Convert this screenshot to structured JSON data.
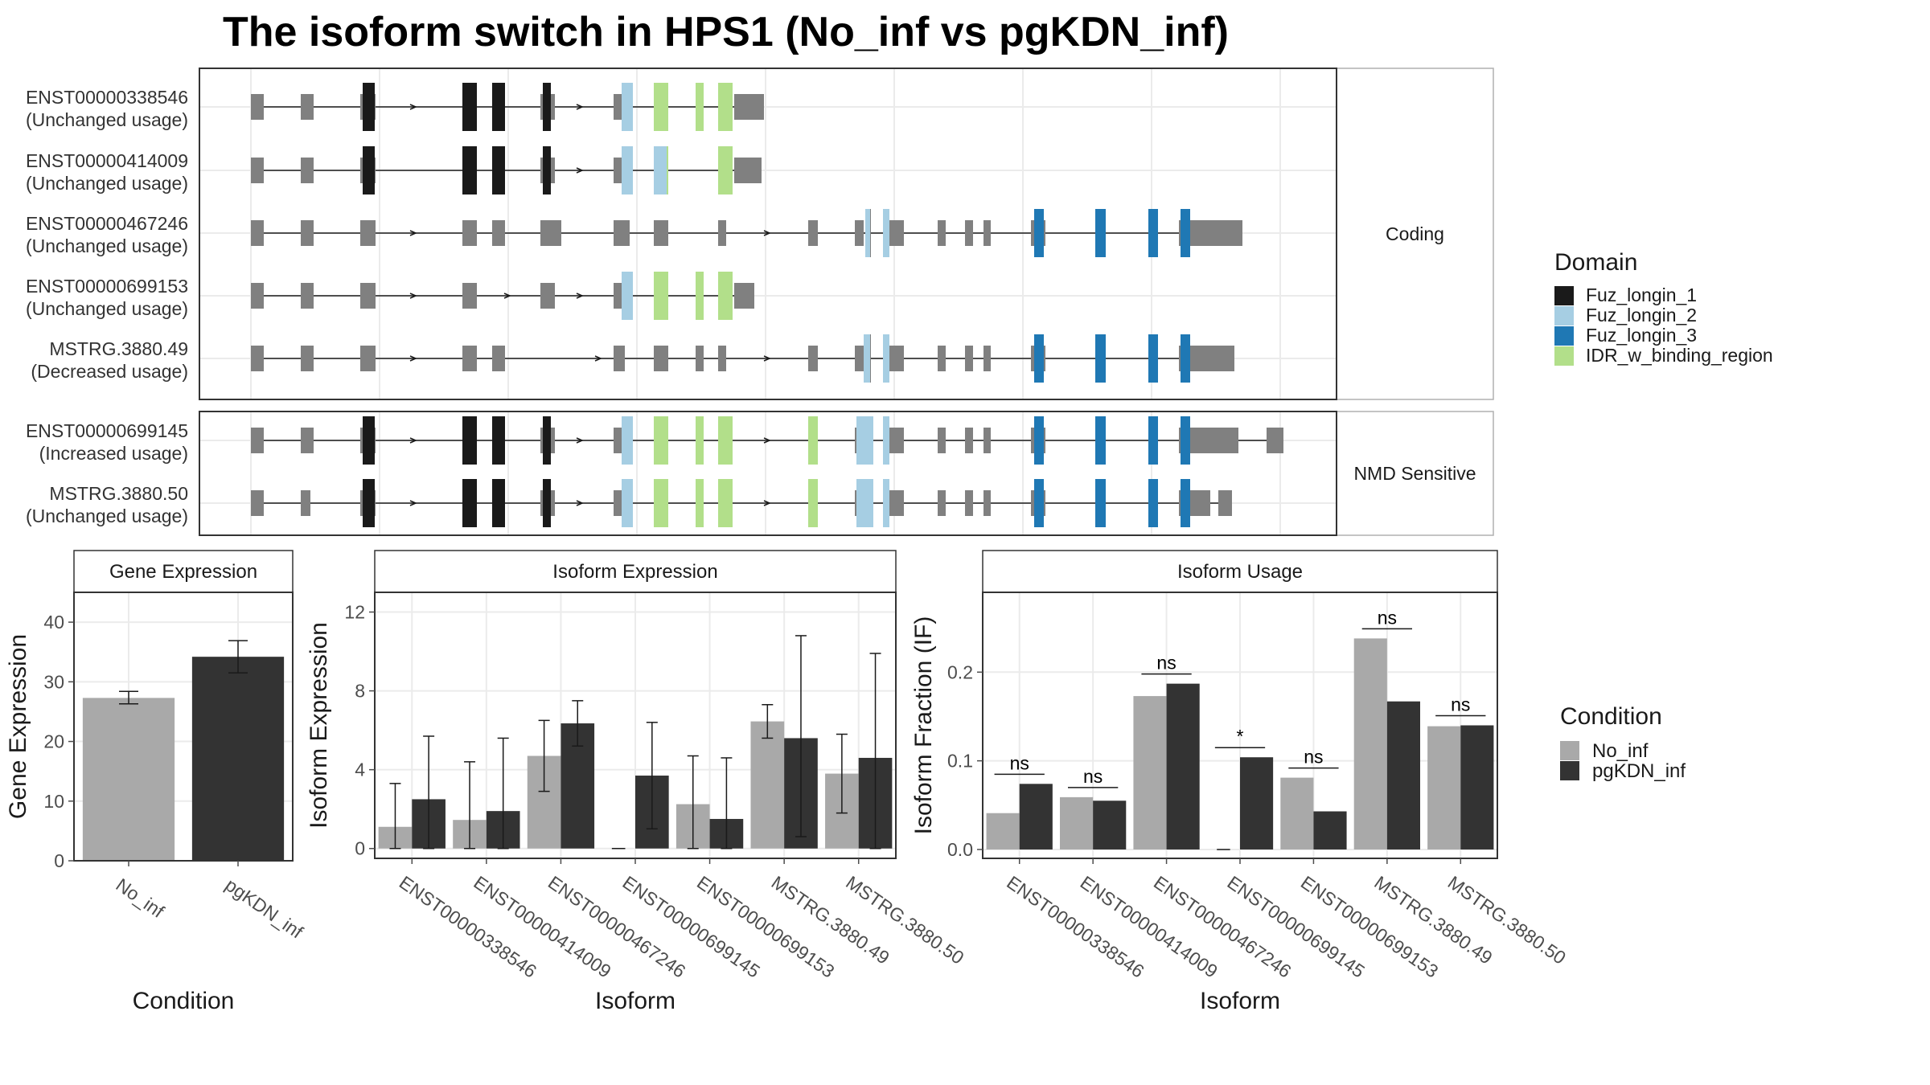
{
  "title": "The isoform switch in HPS1 (No_inf vs pgKDN_inf)",
  "colors": {
    "Fuz_longin_1": "#1a1a1a",
    "Fuz_longin_2": "#a6cee3",
    "Fuz_longin_3": "#1f78b4",
    "IDR_w_binding_region": "#b2df8a",
    "exon": "#808080",
    "No_inf": "#a9a9a9",
    "pgKDN_inf": "#333333"
  },
  "chart_data": [
    {
      "type": "gene_structure",
      "facets": [
        {
          "label": "Coding",
          "isoforms": [
            {
              "id": "ENST00000338546",
              "usage": "(Unchanged usage)"
            },
            {
              "id": "ENST00000414009",
              "usage": "(Unchanged usage)"
            },
            {
              "id": "ENST00000467246",
              "usage": "(Unchanged usage)"
            },
            {
              "id": "ENST00000699153",
              "usage": "(Unchanged usage)"
            },
            {
              "id": "MSTRG.3880.49",
              "usage": "(Decreased usage)"
            }
          ]
        },
        {
          "label": "NMD Sensitive",
          "isoforms": [
            {
              "id": "ENST00000699145",
              "usage": "(Increased usage)"
            },
            {
              "id": "MSTRG.3880.50",
              "usage": "(Unchanged usage)"
            }
          ]
        }
      ],
      "domain_legend": {
        "title": "Domain",
        "entries": [
          "Fuz_longin_1",
          "Fuz_longin_2",
          "Fuz_longin_3",
          "IDR_w_binding_region"
        ]
      }
    },
    {
      "type": "bar",
      "panel": "Gene Expression",
      "categories": [
        "No_inf",
        "pgKDN_inf"
      ],
      "values": [
        27.3,
        34.2
      ],
      "error": [
        [
          26.3,
          28.4
        ],
        [
          31.5,
          36.9
        ]
      ],
      "xlabel": "Condition",
      "ylabel": "Gene Expression",
      "ylim": [
        0,
        45
      ],
      "yticks": [
        0,
        10,
        20,
        30,
        40
      ]
    },
    {
      "type": "bar",
      "panel": "Isoform Expression",
      "categories": [
        "ENST00000338546",
        "ENST00000414009",
        "ENST00000467246",
        "ENST00000699145",
        "ENST00000699153",
        "MSTRG.3880.49",
        "MSTRG.3880.50"
      ],
      "series": [
        {
          "name": "No_inf",
          "values": [
            1.1,
            1.45,
            4.7,
            0.0,
            2.25,
            6.45,
            3.8
          ],
          "error": [
            [
              0,
              3.3
            ],
            [
              0,
              4.4
            ],
            [
              2.9,
              6.5
            ],
            [
              0,
              0
            ],
            [
              0,
              4.7
            ],
            [
              5.6,
              7.3
            ],
            [
              1.8,
              5.8
            ]
          ]
        },
        {
          "name": "pgKDN_inf",
          "values": [
            2.5,
            1.9,
            6.35,
            3.7,
            1.5,
            5.6,
            4.6
          ],
          "error": [
            [
              0,
              5.7
            ],
            [
              0,
              5.6
            ],
            [
              5.2,
              7.5
            ],
            [
              1.0,
              6.4
            ],
            [
              0,
              4.6
            ],
            [
              0.6,
              10.8
            ],
            [
              0,
              9.9
            ]
          ]
        }
      ],
      "xlabel": "Isoform",
      "ylabel": "Isoform Expression",
      "ylim": [
        -0.5,
        13
      ],
      "yticks": [
        0,
        4,
        8,
        12
      ]
    },
    {
      "type": "bar",
      "panel": "Isoform Usage",
      "categories": [
        "ENST00000338546",
        "ENST00000414009",
        "ENST00000467246",
        "ENST00000699145",
        "ENST00000699153",
        "MSTRG.3880.49",
        "MSTRG.3880.50"
      ],
      "series": [
        {
          "name": "No_inf",
          "values": [
            0.041,
            0.059,
            0.173,
            0.0,
            0.081,
            0.238,
            0.139
          ]
        },
        {
          "name": "pgKDN_inf",
          "values": [
            0.074,
            0.055,
            0.187,
            0.104,
            0.043,
            0.167,
            0.14
          ]
        }
      ],
      "annotations": [
        "ns",
        "ns",
        "ns",
        "*",
        "ns",
        "ns",
        "ns"
      ],
      "xlabel": "Isoform",
      "ylabel": "Isoform Fraction (IF)",
      "ylim": [
        -0.01,
        0.29
      ],
      "yticks": [
        0.0,
        0.1,
        0.2
      ],
      "yticklabels": [
        "0.0",
        "0.1",
        "0.2"
      ],
      "legend": {
        "title": "Condition",
        "entries": [
          "No_inf",
          "pgKDN_inf"
        ]
      }
    }
  ]
}
